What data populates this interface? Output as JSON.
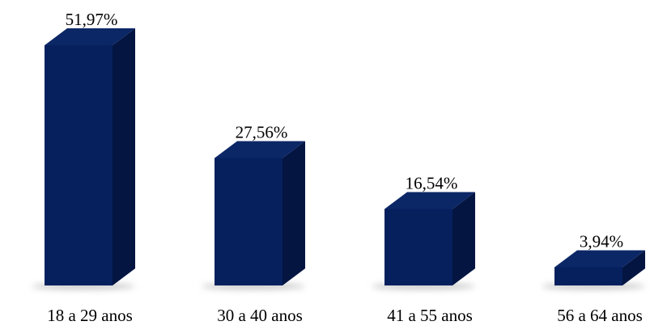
{
  "colors": {
    "bar_front": "#06205E",
    "bar_top": "#0C2766",
    "bar_side": "#041542",
    "shadow": "#9a9a9a",
    "text": "#000000"
  },
  "chart_data": {
    "type": "bar",
    "style": "3d-column",
    "categories": [
      "18 a 29 anos",
      "30 a 40 anos",
      "41 a 55 anos",
      "56 a 64 anos"
    ],
    "values": [
      51.97,
      27.56,
      16.54,
      3.94
    ],
    "data_labels": [
      "51,97%",
      "27,56%",
      "16,54%",
      "3,94%"
    ],
    "title": "",
    "xlabel": "",
    "ylabel": "",
    "ylim": [
      0,
      51.97
    ],
    "grid": false,
    "legend": "none"
  }
}
